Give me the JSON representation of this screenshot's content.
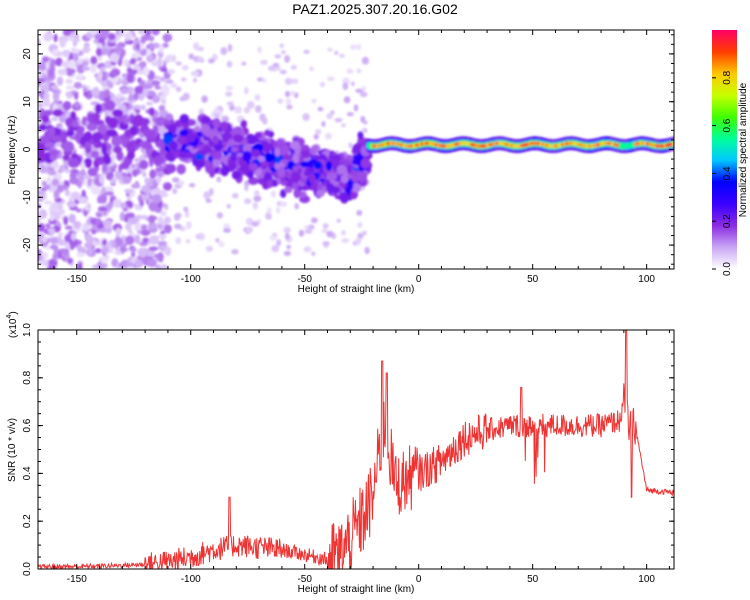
{
  "title": "PAZ1.2025.307.20.16.G02",
  "chart_data": [
    {
      "type": "heatmap",
      "name": "spectrogram",
      "xlabel": "Height of straight line (km)",
      "ylabel": "Frequency (Hz)",
      "xlim": [
        -167,
        112
      ],
      "ylim": [
        -25,
        25
      ],
      "xticks": [
        -150,
        -100,
        -50,
        0,
        50,
        100
      ],
      "xtick_labels": [
        "-150",
        "-100",
        "-50",
        "0",
        "50",
        "100"
      ],
      "yticks": [
        -20,
        -10,
        0,
        10,
        20
      ],
      "ytick_labels": [
        "-20",
        "-10",
        "0",
        "10",
        "20"
      ],
      "colorbar": {
        "label": "Normalized spectral amplitude",
        "range": [
          0,
          1
        ],
        "ticks": [
          0.0,
          0.2,
          0.4,
          0.6,
          0.8
        ],
        "tick_labels": [
          "0.0",
          "0.2",
          "0.4",
          "0.6",
          "0.8"
        ],
        "colors": [
          "#ffffff",
          "#c9a6f5",
          "#8a2be2",
          "#3a00ff",
          "#0000ff",
          "#00c8ff",
          "#00ff9a",
          "#40ff00",
          "#c8ff00",
          "#ffc800",
          "#ff3c00",
          "#ff0066"
        ]
      },
      "noise_region": {
        "x": [
          -167,
          -110
        ],
        "freq_spread": 25,
        "amplitude": "low (0.0-0.2)"
      },
      "transition_region": {
        "x": [
          -110,
          -22
        ],
        "center_freq": [
          [
            -110,
            2
          ],
          [
            -80,
            0
          ],
          [
            -50,
            -4
          ],
          [
            -30,
            -6
          ],
          [
            -22,
            0
          ]
        ],
        "amplitude": "0.1-0.4"
      },
      "signal_band": {
        "x": [
          -22,
          112
        ],
        "center_freq": 1,
        "amplitude": "0.5-1.0"
      }
    },
    {
      "type": "line",
      "name": "snr",
      "xlabel": "Height of straight line (km)",
      "ylabel": "SNR (10 * v/v)",
      "scale_label": "(x10",
      "scale_exp": "4",
      "xlim": [
        -167,
        112
      ],
      "ylim": [
        0,
        1.0
      ],
      "xticks": [
        -150,
        -100,
        -50,
        0,
        50,
        100
      ],
      "xtick_labels": [
        "-150",
        "-100",
        "-50",
        "0",
        "50",
        "100"
      ],
      "yticks": [
        0.0,
        0.2,
        0.4,
        0.6,
        0.8,
        1.0
      ],
      "ytick_labels": [
        "0.0",
        "0.2",
        "0.4",
        "0.6",
        "0.8",
        "1.0"
      ],
      "color": "#ee3333",
      "series": [
        {
          "name": "SNR",
          "x": [
            -167,
            -150,
            -130,
            -120,
            -110,
            -100,
            -90,
            -80,
            -70,
            -60,
            -50,
            -40,
            -35,
            -30,
            -25,
            -20,
            -18,
            -15,
            -10,
            0,
            10,
            20,
            30,
            40,
            50,
            60,
            70,
            80,
            88,
            90,
            92,
            95,
            100,
            112
          ],
          "y": [
            0.01,
            0.01,
            0.015,
            0.02,
            0.03,
            0.05,
            0.08,
            0.1,
            0.09,
            0.08,
            0.06,
            0.04,
            0.05,
            0.12,
            0.2,
            0.3,
            0.45,
            0.6,
            0.35,
            0.4,
            0.45,
            0.55,
            0.58,
            0.6,
            0.6,
            0.6,
            0.6,
            0.6,
            0.62,
            0.7,
            0.6,
            0.6,
            0.33,
            0.32
          ]
        }
      ],
      "peaks": [
        {
          "x": -83,
          "y": 0.3
        },
        {
          "x": -16,
          "y": 0.87
        },
        {
          "x": -14,
          "y": 0.82
        },
        {
          "x": 45,
          "y": 0.76
        },
        {
          "x": 91,
          "y": 1.0
        }
      ]
    }
  ]
}
